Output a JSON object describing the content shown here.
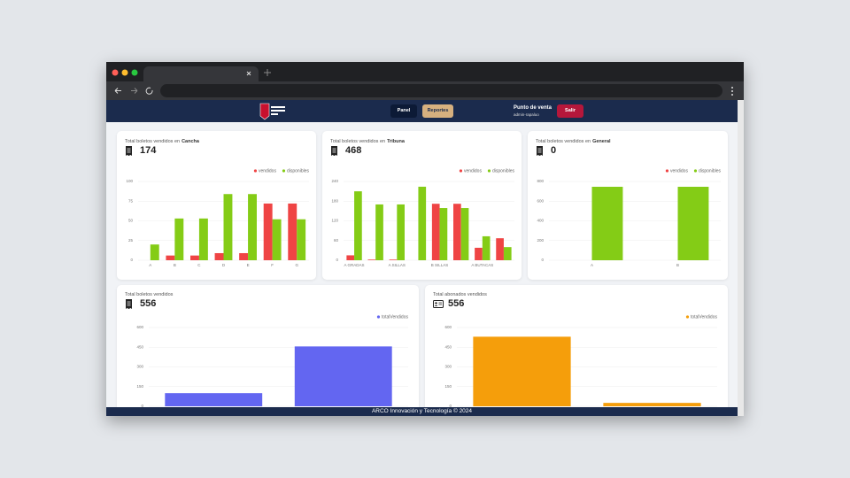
{
  "header": {
    "nav": [
      "Panel",
      "Reportes"
    ],
    "point_of_sale": "Punto de venta",
    "user": "admin-rapaluo",
    "logout": "Salir"
  },
  "chart_data": [
    {
      "type": "bar",
      "title": "Total boletos vendidos en",
      "title_emphasis": "Cancha",
      "total": 174,
      "categories": [
        "A",
        "B",
        "C",
        "D",
        "E",
        "F",
        "G"
      ],
      "series": [
        {
          "name": "vendidos",
          "color": "#ef4444",
          "values": [
            0,
            6,
            6,
            9,
            9,
            72,
            72
          ]
        },
        {
          "name": "disponibles",
          "color": "#84cc16",
          "values": [
            20,
            53,
            53,
            84,
            84,
            52,
            52
          ]
        }
      ],
      "ylim": [
        0,
        100
      ],
      "yticks": [
        0,
        25,
        50,
        75,
        100
      ],
      "grid": true,
      "legend": "top-right"
    },
    {
      "type": "bar",
      "title": "Total boletos vendidos en",
      "title_emphasis": "Tribuna",
      "total": 468,
      "categories": [
        "A GRADAS",
        null,
        "A SILLAS",
        null,
        "B SILLAS",
        null,
        "A BUTACAS",
        null
      ],
      "series": [
        {
          "name": "vendidos",
          "color": "#ef4444",
          "values": [
            15,
            2,
            2,
            0,
            172,
            172,
            38,
            67
          ]
        },
        {
          "name": "disponibles",
          "color": "#84cc16",
          "values": [
            210,
            170,
            170,
            224,
            159,
            159,
            73,
            40
          ]
        }
      ],
      "ylim": [
        0,
        240
      ],
      "yticks": [
        0,
        60,
        120,
        180,
        240
      ],
      "grid": true,
      "legend": "top-right"
    },
    {
      "type": "bar",
      "title": "Total boletos vendidos en",
      "title_emphasis": "General",
      "total": 0,
      "categories": [
        "A",
        "B"
      ],
      "series": [
        {
          "name": "vendidos",
          "color": "#ef4444",
          "values": [
            0,
            0
          ]
        },
        {
          "name": "disponibles",
          "color": "#84cc16",
          "values": [
            746,
            746
          ]
        }
      ],
      "ylim": [
        0,
        800
      ],
      "yticks": [
        0,
        200,
        400,
        600,
        800
      ],
      "grid": true,
      "legend": "top-right"
    },
    {
      "type": "bar",
      "title": "Total boletos vendidos",
      "total": 556,
      "categories": [
        null,
        null
      ],
      "series": [
        {
          "name": "totalVendidos",
          "color": "#6366f1",
          "values": [
            100,
            456
          ]
        }
      ],
      "ylim": [
        0,
        600
      ],
      "yticks": [
        0,
        150,
        300,
        450,
        600
      ],
      "grid": true,
      "legend": "top-right"
    },
    {
      "type": "bar",
      "title": "Total abonados vendidos",
      "total": 556,
      "categories": [
        null,
        null
      ],
      "series": [
        {
          "name": "totalVendidos",
          "color": "#f59e0b",
          "values": [
            530,
            26
          ]
        }
      ],
      "ylim": [
        0,
        600
      ],
      "yticks": [
        0,
        150,
        300,
        450,
        600
      ],
      "grid": true,
      "legend": "top-right"
    }
  ],
  "footer": "ARCO Innovación y Tecnología © 2024"
}
